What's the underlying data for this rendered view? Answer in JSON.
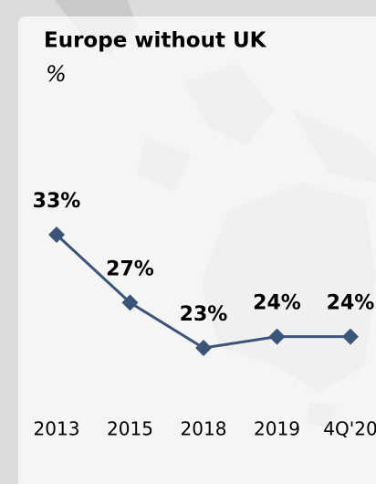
{
  "chart_data": {
    "type": "line",
    "title": "Europe without UK",
    "subtitle": "%",
    "categories": [
      "2013",
      "2015",
      "2018",
      "2019",
      "4Q'20"
    ],
    "values": [
      33,
      27,
      23,
      24,
      24
    ],
    "value_labels": [
      "33%",
      "27%",
      "23%",
      "24%",
      "24%"
    ],
    "color": "#3b5578"
  }
}
